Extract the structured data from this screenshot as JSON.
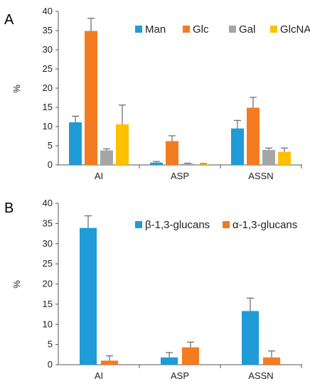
{
  "chart_data": [
    {
      "type": "bar",
      "panel_label": "A",
      "categories": [
        "AI",
        "ASP",
        "ASSN"
      ],
      "series": [
        {
          "name": "Man",
          "color": "#1f9bd7",
          "values": [
            11.1,
            0.6,
            9.5
          ],
          "errors": [
            1.6,
            0.3,
            2.1
          ]
        },
        {
          "name": "Glc",
          "color": "#f47b20",
          "values": [
            34.9,
            6.2,
            14.9
          ],
          "errors": [
            3.3,
            1.4,
            2.7
          ]
        },
        {
          "name": "Gal",
          "color": "#a6a6a6",
          "values": [
            3.8,
            0.3,
            3.9
          ],
          "errors": [
            0.4,
            0.15,
            0.5
          ]
        },
        {
          "name": "GlcNAc",
          "color": "#ffc000",
          "values": [
            10.6,
            0.2,
            3.4
          ],
          "errors": [
            5.0,
            0.15,
            1.0
          ]
        }
      ],
      "ylabel": "%",
      "ylim": [
        0,
        40
      ],
      "yticks": [
        0,
        5,
        10,
        15,
        20,
        25,
        30,
        35,
        40
      ],
      "legend": "top-right",
      "grid": false
    },
    {
      "type": "bar",
      "panel_label": "B",
      "categories": [
        "AI",
        "ASP",
        "ASSN"
      ],
      "series": [
        {
          "name": "β-1,3-glucans",
          "color": "#1f9bd7",
          "values": [
            33.9,
            1.8,
            13.3
          ],
          "errors": [
            3.0,
            1.2,
            3.2
          ]
        },
        {
          "name": "α-1,3-glucans",
          "color": "#f47b20",
          "values": [
            1.0,
            4.3,
            1.8
          ],
          "errors": [
            1.2,
            1.3,
            1.6
          ]
        }
      ],
      "ylabel": "%",
      "ylim": [
        0,
        40
      ],
      "yticks": [
        0,
        5,
        10,
        15,
        20,
        25,
        30,
        35,
        40
      ],
      "legend": "top-right",
      "grid": false
    }
  ]
}
